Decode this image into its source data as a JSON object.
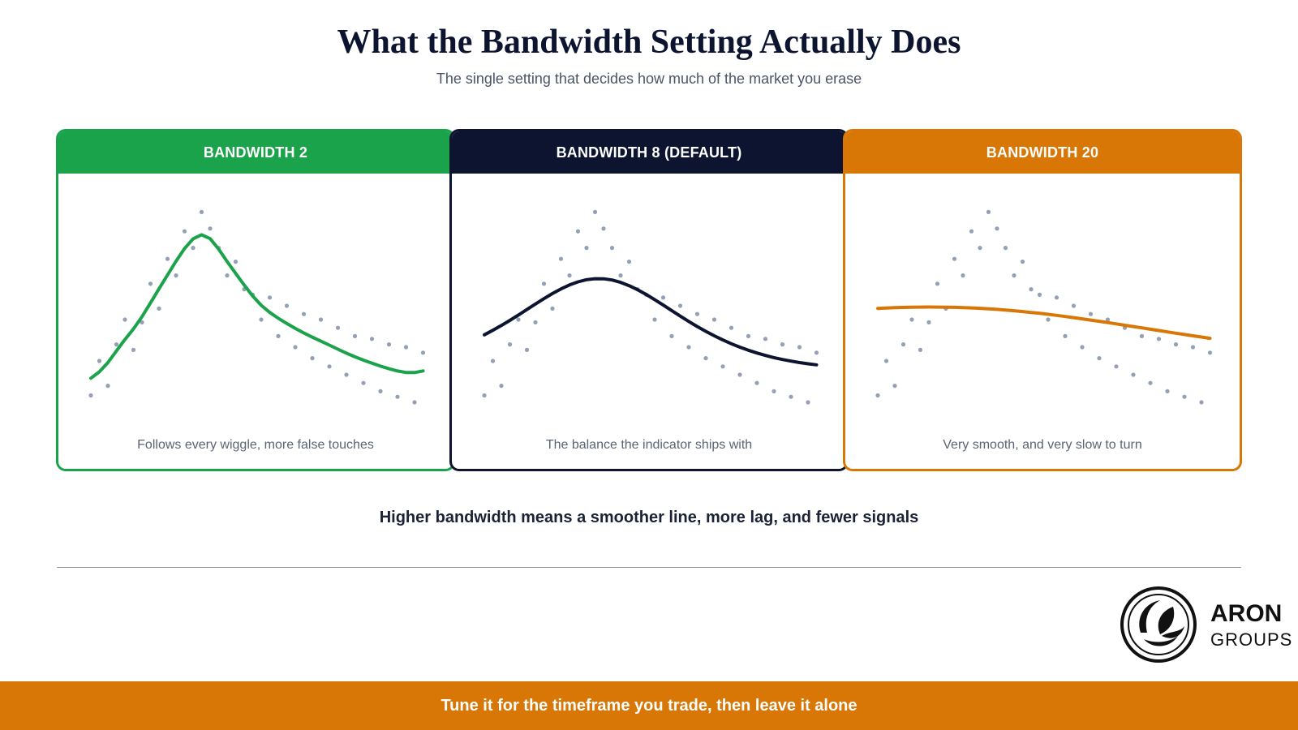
{
  "header": {
    "title": "What the Bandwidth Setting Actually Does",
    "subtitle": "The single setting that decides how much of the market you erase"
  },
  "panels": [
    {
      "label": "BANDWIDTH 2",
      "caption": "Follows every wiggle, more false touches",
      "color": "#1aa34a",
      "bandwidth": 2
    },
    {
      "label": "BANDWIDTH 8 (DEFAULT)",
      "caption": "The balance the indicator ships with",
      "color": "#0c1430",
      "bandwidth": 8
    },
    {
      "label": "BANDWIDTH 20",
      "caption": "Very smooth, and very slow to turn",
      "color": "#d97706",
      "bandwidth": 20
    }
  ],
  "price_points": [
    5,
    30,
    12,
    42,
    60,
    38,
    58,
    86,
    68,
    104,
    92,
    124,
    112,
    138,
    126,
    112,
    92,
    102,
    82,
    78,
    60,
    76,
    48,
    70,
    40,
    64,
    32,
    60,
    26,
    54,
    20,
    48,
    14,
    46,
    8,
    42,
    4,
    40,
    0,
    36
  ],
  "dot_color": "#94a0b6",
  "takeaway": "Higher bandwidth means a smoother line, more lag, and fewer signals",
  "logo": {
    "word1": "ARON",
    "word2": "GROUPS"
  },
  "footer": {
    "text": "Tune it for the timeframe you trade, then leave it alone"
  }
}
